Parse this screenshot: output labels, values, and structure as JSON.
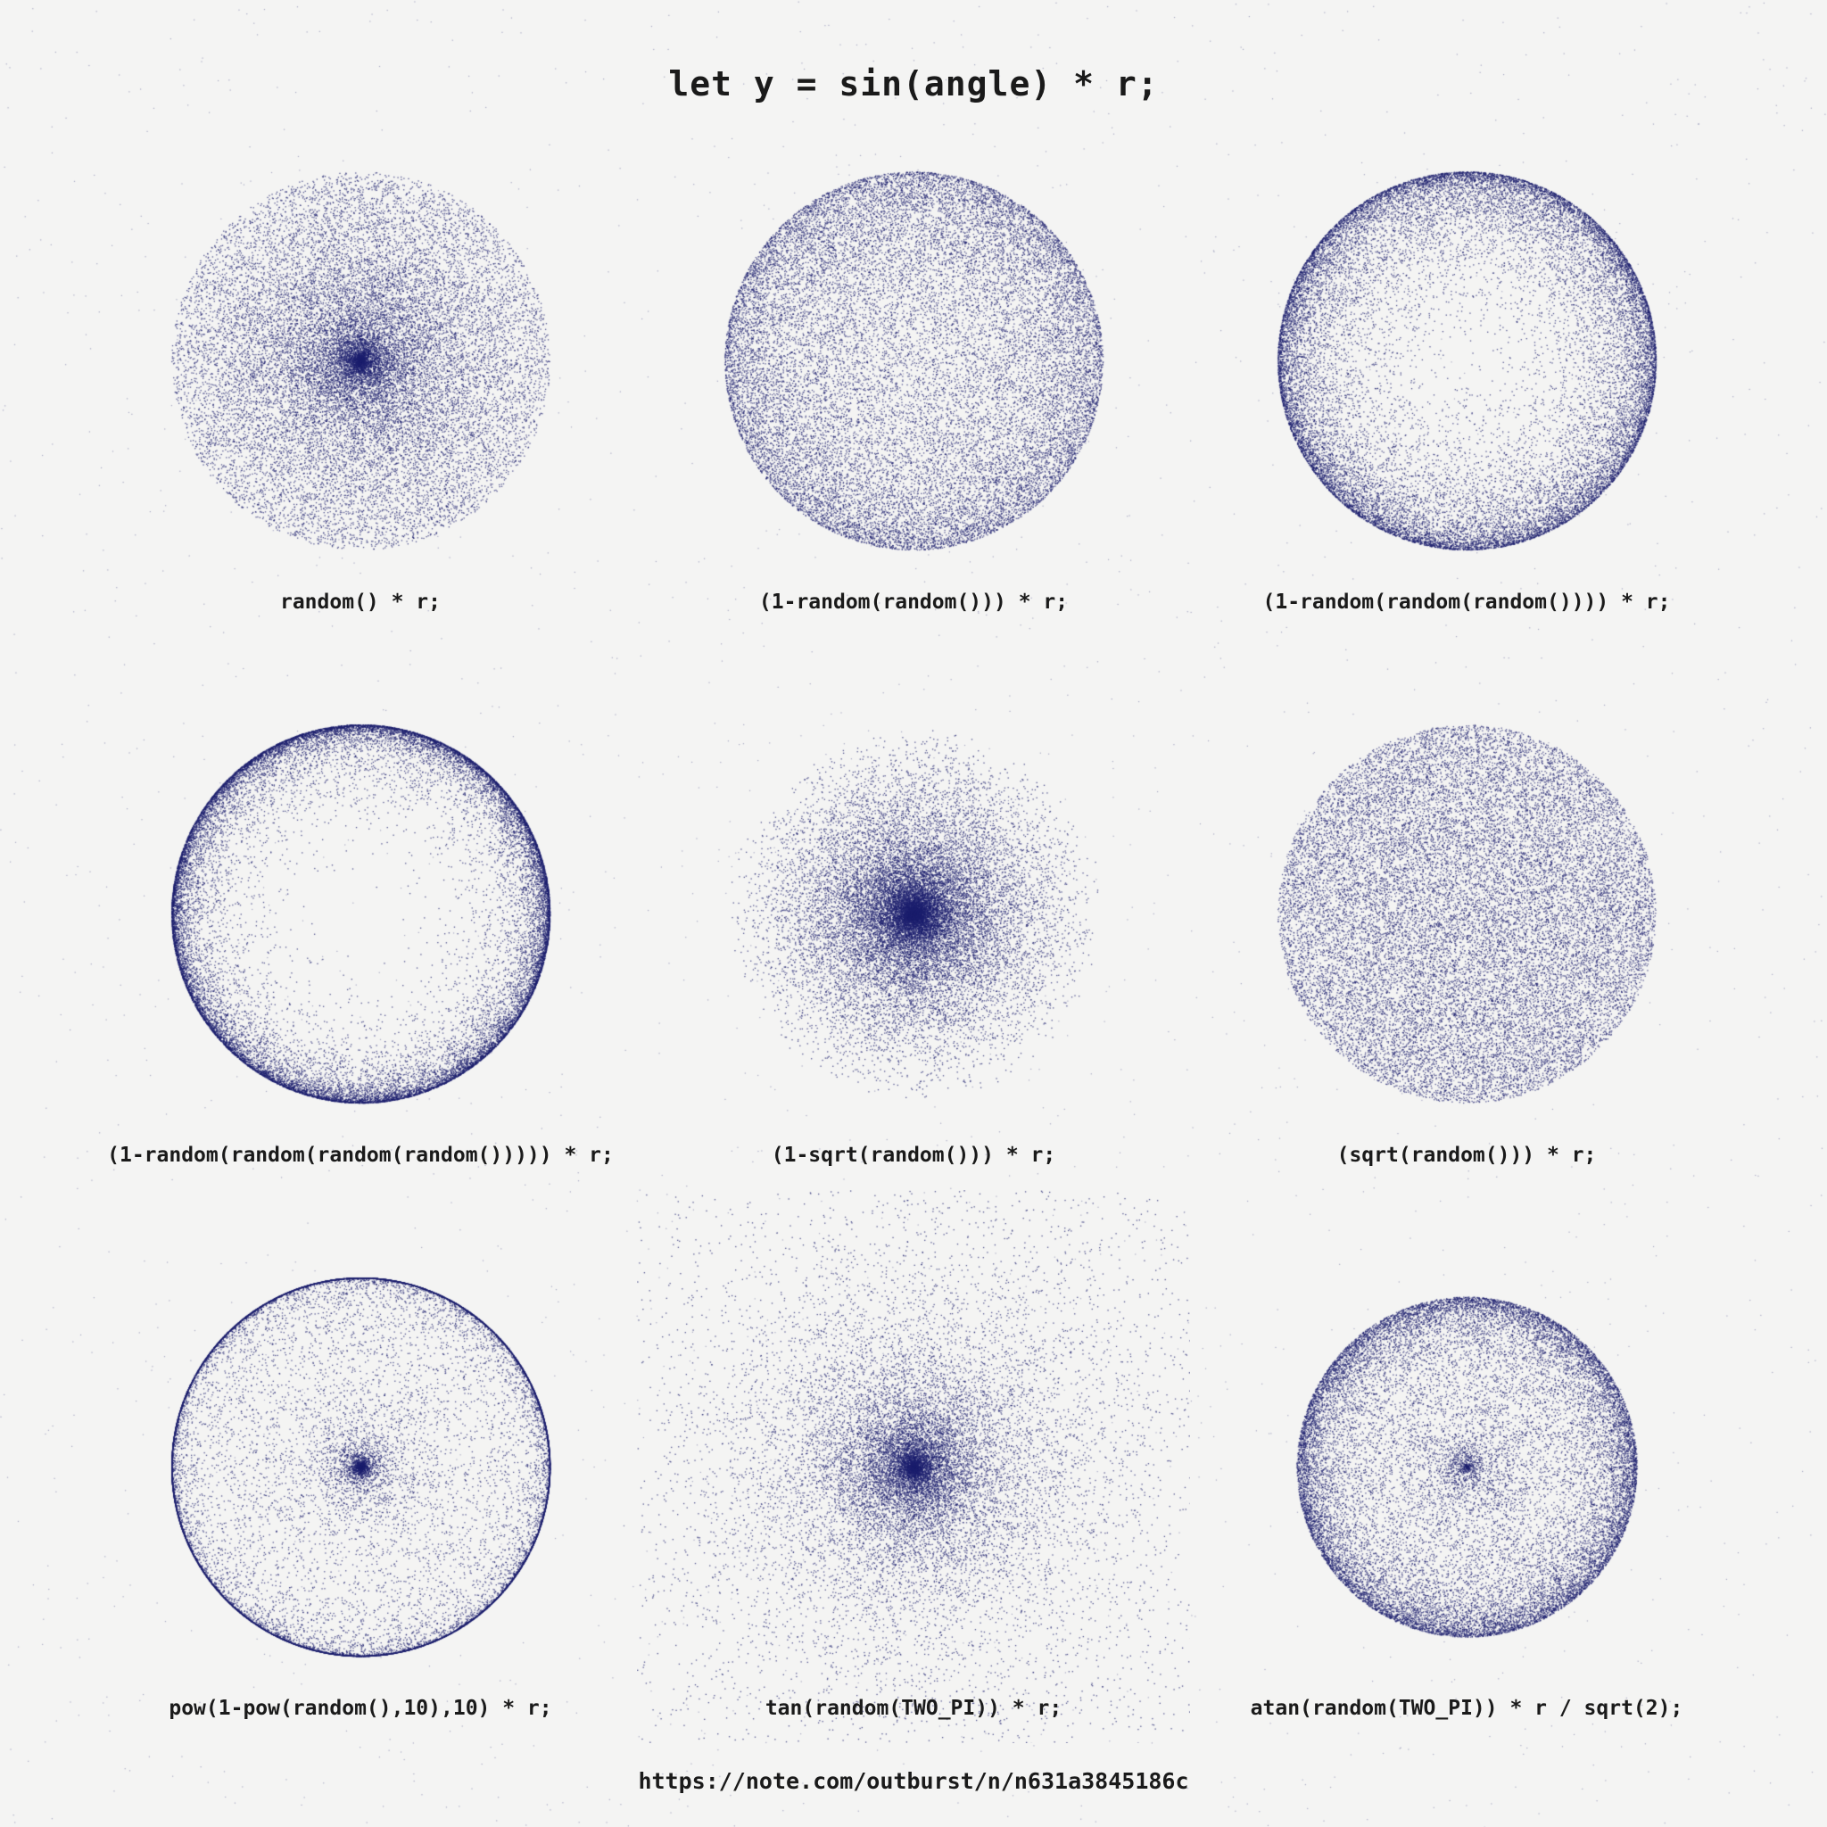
{
  "title": "let y = sin(angle) * r;",
  "footer": "https://note.com/outburst/n/n631a3845186c",
  "colors": {
    "background": "#f4f4f3",
    "dot": "#1c1f6e",
    "text": "#1a1a1a"
  },
  "plots": [
    {
      "caption": "random() * r;",
      "distribution": "uniform-radius"
    },
    {
      "caption": "(1-random(random())) * r;",
      "distribution": "one-minus-nested-2"
    },
    {
      "caption": "(1-random(random(random()))) * r;",
      "distribution": "one-minus-nested-3"
    },
    {
      "caption": "(1-random(random(random(random())))) * r;",
      "distribution": "one-minus-nested-4"
    },
    {
      "caption": "(1-sqrt(random())) * r;",
      "distribution": "one-minus-sqrt"
    },
    {
      "caption": "(sqrt(random())) * r;",
      "distribution": "sqrt"
    },
    {
      "caption": "pow(1-pow(random(),10),10) * r;",
      "distribution": "pow-pow"
    },
    {
      "caption": "tan(random(TWO_PI)) * r;",
      "distribution": "tan"
    },
    {
      "caption": "atan(random(TWO_PI)) * r / sqrt(2);",
      "distribution": "atan"
    }
  ]
}
